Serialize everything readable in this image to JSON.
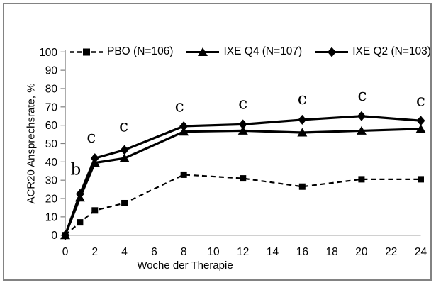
{
  "figure": {
    "background": "#ffffff",
    "border_color": "#828282",
    "series_color": "#000000",
    "axis_color": "#808080"
  },
  "chart_data": {
    "type": "line",
    "title": "",
    "xlabel": "Woche der Therapie",
    "ylabel": "ACR20 Ansprechsrate, %",
    "xlim": [
      0,
      24
    ],
    "ylim": [
      0,
      100
    ],
    "grid": false,
    "legend_position": "top",
    "x_ticks": [
      0,
      2,
      4,
      6,
      8,
      10,
      12,
      14,
      16,
      18,
      20,
      22,
      24
    ],
    "y_ticks": [
      0,
      10,
      20,
      30,
      40,
      50,
      60,
      70,
      80,
      90,
      100
    ],
    "x": [
      0,
      1,
      2,
      4,
      8,
      12,
      16,
      20,
      24
    ],
    "series": [
      {
        "name": "PBO (N=106)",
        "marker": "square",
        "line": "dashed",
        "color": "#000000",
        "values": [
          0,
          7,
          13.5,
          17.5,
          33,
          31,
          26.5,
          30.5,
          30.5
        ]
      },
      {
        "name": "IXE Q4 (N=107)",
        "marker": "triangle",
        "line": "solid",
        "color": "#000000",
        "values": [
          0,
          20.5,
          39.5,
          42,
          56.5,
          57,
          56,
          57,
          58
        ]
      },
      {
        "name": "IXE Q2 (N=103)",
        "marker": "diamond",
        "line": "solid",
        "color": "#000000",
        "values": [
          0,
          22.5,
          42,
          46.5,
          59.5,
          60.5,
          63,
          65,
          62.5
        ]
      }
    ],
    "annotations": [
      {
        "text": "b",
        "week": 1,
        "value": 33,
        "dx": -6
      },
      {
        "text": "c",
        "week": 2,
        "value": 50.5,
        "dx": -5
      },
      {
        "text": "c",
        "week": 4,
        "value": 56.5,
        "dx": -1
      },
      {
        "text": "c",
        "week": 8,
        "value": 67.5,
        "dx": -6
      },
      {
        "text": "c",
        "week": 12,
        "value": 69,
        "dx": 0
      },
      {
        "text": "c",
        "week": 16,
        "value": 71.5,
        "dx": 0
      },
      {
        "text": "c",
        "week": 20,
        "value": 73.5,
        "dx": 1
      },
      {
        "text": "c",
        "week": 24,
        "value": 70.5,
        "dx": 0
      }
    ]
  }
}
